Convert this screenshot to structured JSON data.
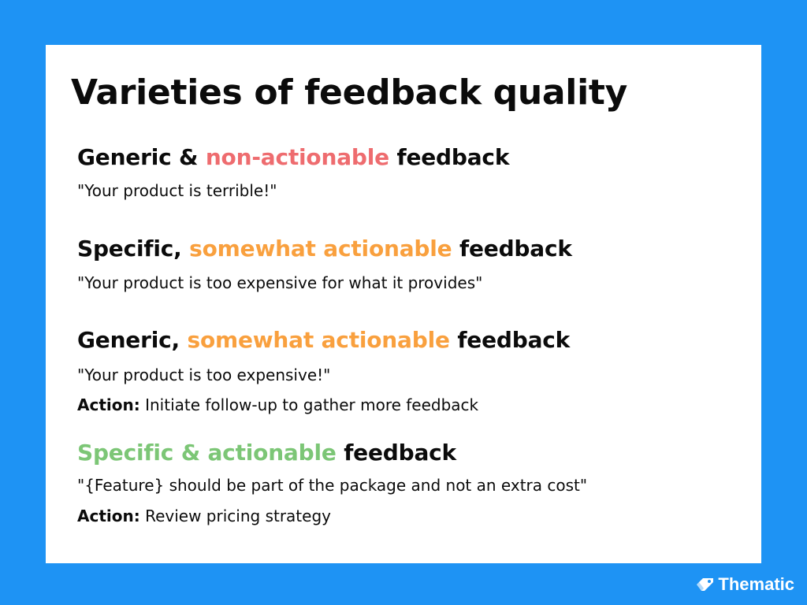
{
  "title": "Varieties of feedback quality",
  "sections": [
    {
      "heading": {
        "prefix": "Generic & ",
        "highlight": "non-actionable",
        "suffix": " feedback",
        "highlight_color": "#ee6c6f"
      },
      "quote": "\"Your product is terrible!\""
    },
    {
      "heading": {
        "prefix": "Specific, ",
        "highlight": "somewhat actionable",
        "suffix": " feedback",
        "highlight_color": "#f9a03e"
      },
      "quote": "\"Your product is too expensive for what it provides\""
    },
    {
      "heading": {
        "prefix": "Generic, ",
        "highlight": "somewhat actionable",
        "suffix": " feedback",
        "highlight_color": "#f9a03e"
      },
      "quote": "\"Your product is too expensive!\"",
      "action_label": "Action:",
      "action_text": " Initiate follow-up to gather more feedback"
    },
    {
      "heading": {
        "prefix": "",
        "highlight": "Specific & actionable",
        "suffix": " feedback",
        "highlight_color": "#7cc676"
      },
      "quote": "\"{Feature} should be part of the package and not an extra cost\"",
      "action_label": "Action:",
      "action_text": " Review pricing strategy"
    }
  ],
  "brand": {
    "name": "Thematic",
    "icon": "thematic-tag-icon",
    "background_color": "#1e93f4"
  }
}
